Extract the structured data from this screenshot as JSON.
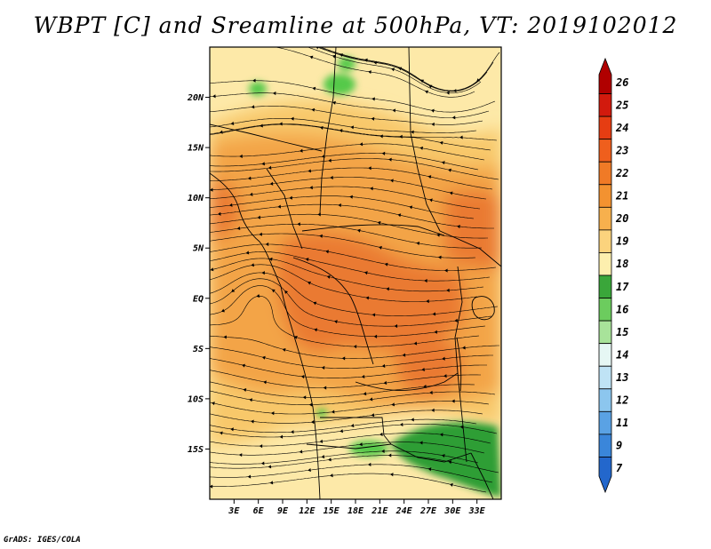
{
  "title": "WBPT [C] and Sreamline at 500hPa, VT: 2019102012",
  "credit": "GrADS: IGES/COLA",
  "map": {
    "lon_range": [
      0,
      36
    ],
    "lat_range": [
      -20,
      25
    ],
    "lat_ticks": [
      {
        "value": 20,
        "label": "20N"
      },
      {
        "value": 15,
        "label": "15N"
      },
      {
        "value": 10,
        "label": "10N"
      },
      {
        "value": 5,
        "label": "5N"
      },
      {
        "value": 0,
        "label": "EQ"
      },
      {
        "value": -5,
        "label": "5S"
      },
      {
        "value": -10,
        "label": "10S"
      },
      {
        "value": -15,
        "label": "15S"
      }
    ],
    "lon_ticks": [
      {
        "value": 3,
        "label": "3E"
      },
      {
        "value": 6,
        "label": "6E"
      },
      {
        "value": 9,
        "label": "9E"
      },
      {
        "value": 12,
        "label": "12E"
      },
      {
        "value": 15,
        "label": "15E"
      },
      {
        "value": 18,
        "label": "18E"
      },
      {
        "value": 21,
        "label": "21E"
      },
      {
        "value": 24,
        "label": "24E"
      },
      {
        "value": 27,
        "label": "27E"
      },
      {
        "value": 30,
        "label": "30E"
      },
      {
        "value": 33,
        "label": "33E"
      }
    ],
    "shading_colors": {
      "pale_yellow": "#fde9a8",
      "light_orange": "#f8c86a",
      "orange": "#f3a446",
      "deep_orange": "#ea7a32",
      "green": "#55c94a",
      "dark_green": "#2f9e35"
    }
  },
  "colorbar": {
    "levels": [
      "26",
      "25",
      "24",
      "23",
      "22",
      "21",
      "20",
      "19",
      "18",
      "17",
      "16",
      "15",
      "14",
      "13",
      "12",
      "11",
      "9",
      "7"
    ],
    "colors": [
      "#b00000",
      "#d21a0d",
      "#e63d12",
      "#ef5f1d",
      "#f07a26",
      "#f39230",
      "#f7b04d",
      "#fbd37d",
      "#fdefae",
      "#3aa63a",
      "#6ccc5e",
      "#a8e39a",
      "#e6f7f4",
      "#bfe3f5",
      "#8cc6ee",
      "#5aa2e4",
      "#3a86da",
      "#2367cc"
    ]
  }
}
